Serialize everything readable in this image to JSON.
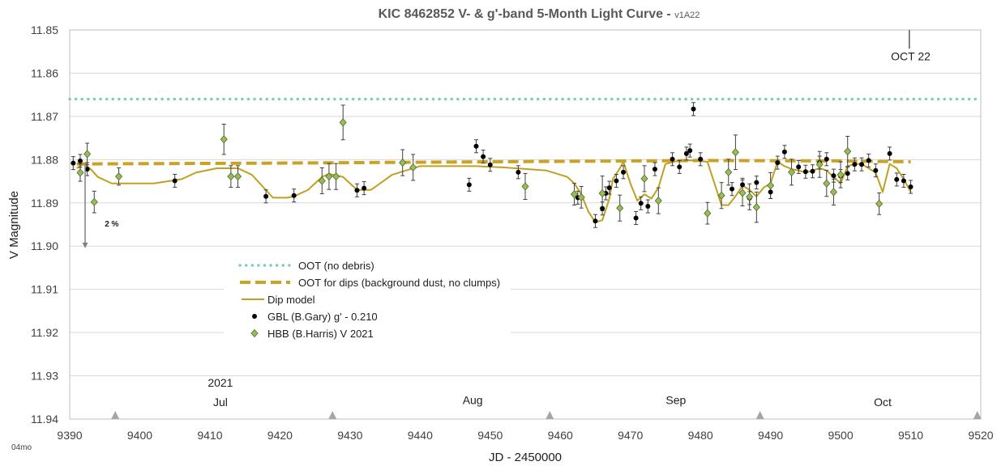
{
  "chart_data": {
    "type": "scatter",
    "title": "KIC 8462852 V- & g'-band 5-Month Light Curve - ",
    "title_version": "v1A22",
    "xlabel": "JD - 2450000",
    "ylabel": "V Magnitude",
    "xlim": [
      9390,
      9520
    ],
    "ylim": [
      11.85,
      11.94
    ],
    "y_inverted": true,
    "grid": "horizontal",
    "legend_position": "center-left",
    "xticks": [
      "9390",
      "9400",
      "9410",
      "9420",
      "9430",
      "9440",
      "9450",
      "9460",
      "9470",
      "9480",
      "9490",
      "9500",
      "9510",
      "9520"
    ],
    "yticks": [
      "11.85",
      "11.86",
      "11.87",
      "11.88",
      "11.89",
      "11.90",
      "11.91",
      "11.92",
      "11.93",
      "11.94"
    ],
    "month_labels": [
      {
        "text": "2021",
        "x": 9411.5,
        "y": 11.9325
      },
      {
        "text": "Jul",
        "x": 9411.5,
        "y": 11.937
      },
      {
        "text": "Aug",
        "x": 9447.5,
        "y": 11.9365
      },
      {
        "text": "Sep",
        "x": 9476.5,
        "y": 11.9365
      },
      {
        "text": "Oct",
        "x": 9506,
        "y": 11.937
      }
    ],
    "month_markers_x": [
      9396.5,
      9427.5,
      9458.5,
      9488.5,
      9519.5
    ],
    "annotations": [
      {
        "text": "OCT 22",
        "x": 9510,
        "y": 11.857
      },
      {
        "text": "2 %",
        "x": 9395,
        "y": 11.8955
      }
    ],
    "oct22_marker": {
      "x": 9509.8,
      "y_from": 11.85,
      "y_to": 11.8543
    },
    "two_percent_arrow": {
      "x": 9392.2,
      "y_from": 11.881,
      "y_to": 11.9005
    },
    "series": [
      {
        "name": "OOT (no debris)",
        "kind": "dotted-line",
        "color": "#7fcfaa",
        "x": [
          9390,
          9520
        ],
        "y": [
          11.866,
          11.866
        ]
      },
      {
        "name": "OOT for dips (background dust, no clumps)",
        "kind": "dashed-line",
        "color": "#c9a227",
        "x": [
          9391,
          9420,
          9450,
          9480,
          9500,
          9510
        ],
        "y": [
          11.881,
          11.8808,
          11.8805,
          11.8802,
          11.8803,
          11.8805
        ]
      },
      {
        "name": "Dip model",
        "kind": "line",
        "color": "#c0a020",
        "x": [
          9391,
          9392,
          9393,
          9394,
          9396,
          9399,
          9402,
          9406,
          9408,
          9411,
          9414,
          9416,
          9419,
          9421,
          9422,
          9424,
          9426,
          9427,
          9429,
          9431,
          9433,
          9436,
          9438,
          9440,
          9443,
          9448,
          9452,
          9458,
          9461,
          9462,
          9463,
          9464,
          9465,
          9466,
          9467,
          9467.5,
          9468.5,
          9469,
          9470,
          9471,
          9472,
          9473,
          9474,
          9475,
          9477,
          9479,
          9481,
          9482,
          9483,
          9484,
          9485,
          9486,
          9487,
          9488,
          9489,
          9490,
          9491,
          9492,
          9493,
          9494,
          9495,
          9496,
          9497,
          9498,
          9499,
          9500,
          9501,
          9502,
          9503,
          9504,
          9505,
          9506,
          9507,
          9508,
          9509,
          9510
        ],
        "y": [
          11.882,
          11.881,
          11.8822,
          11.884,
          11.8855,
          11.8855,
          11.8855,
          11.8845,
          11.883,
          11.882,
          11.882,
          11.8835,
          11.8888,
          11.8888,
          11.8885,
          11.887,
          11.884,
          11.8833,
          11.884,
          11.887,
          11.887,
          11.8835,
          11.8825,
          11.8815,
          11.8815,
          11.8815,
          11.8818,
          11.8825,
          11.884,
          11.8855,
          11.888,
          11.892,
          11.8945,
          11.894,
          11.889,
          11.8845,
          11.882,
          11.8805,
          11.8855,
          11.8895,
          11.888,
          11.889,
          11.8865,
          11.881,
          11.8802,
          11.8802,
          11.8805,
          11.8855,
          11.8905,
          11.8905,
          11.8885,
          11.886,
          11.887,
          11.8885,
          11.8865,
          11.8855,
          11.8805,
          11.8815,
          11.8822,
          11.8825,
          11.883,
          11.8825,
          11.882,
          11.8825,
          11.884,
          11.8855,
          11.8815,
          11.881,
          11.881,
          11.882,
          11.883,
          11.8875,
          11.881,
          11.882,
          11.8845,
          11.8875
        ]
      },
      {
        "name": "GBL (B.Gary) g' - 0.210",
        "kind": "circle",
        "color": "#000000",
        "points": [
          [
            9390.5,
            11.8808,
            0.0015
          ],
          [
            9391.5,
            11.8803,
            0.0015
          ],
          [
            9392.5,
            11.8822,
            0.0015
          ],
          [
            9405,
            11.8849,
            0.0015
          ],
          [
            9418,
            11.8885,
            0.0015
          ],
          [
            9422,
            11.8883,
            0.0015
          ],
          [
            9431,
            11.8871,
            0.0015
          ],
          [
            9432,
            11.8866,
            0.0015
          ],
          [
            9447,
            11.8858,
            0.0015
          ],
          [
            9448,
            11.8769,
            0.0015
          ],
          [
            9449,
            11.8793,
            0.0015
          ],
          [
            9450,
            11.8812,
            0.0015
          ],
          [
            9454,
            11.8829,
            0.0015
          ],
          [
            9462.5,
            11.8888,
            0.0015
          ],
          [
            9465,
            11.8942,
            0.0015
          ],
          [
            9466,
            11.8913,
            0.0015
          ],
          [
            9466.5,
            11.8878,
            0.0015
          ],
          [
            9467,
            11.8865,
            0.0015
          ],
          [
            9468,
            11.8849,
            0.0015
          ],
          [
            9469,
            11.8829,
            0.0015
          ],
          [
            9470.8,
            11.8935,
            0.0015
          ],
          [
            9471.5,
            11.8901,
            0.0015
          ],
          [
            9472.5,
            11.8908,
            0.0015
          ],
          [
            9473.5,
            11.8822,
            0.0015
          ],
          [
            9476,
            11.8799,
            0.0015
          ],
          [
            9477,
            11.8817,
            0.0015
          ],
          [
            9478,
            11.8786,
            0.0015
          ],
          [
            9478.5,
            11.8779,
            0.0015
          ],
          [
            9479,
            11.8683,
            0.0015
          ],
          [
            9480,
            11.8799,
            0.0015
          ],
          [
            9484.5,
            11.8868,
            0.0015
          ],
          [
            9486,
            11.8858,
            0.0015
          ],
          [
            9487,
            11.8889,
            0.0015
          ],
          [
            9488,
            11.8853,
            0.0015
          ],
          [
            9490,
            11.8875,
            0.0015
          ],
          [
            9491,
            11.8807,
            0.0015
          ],
          [
            9492,
            11.8782,
            0.0015
          ],
          [
            9494,
            11.8817,
            0.0015
          ],
          [
            9495,
            11.8828,
            0.0015
          ],
          [
            9496,
            11.8827,
            0.0015
          ],
          [
            9497,
            11.8807,
            0.0015
          ],
          [
            9498,
            11.8799,
            0.0015
          ],
          [
            9499,
            11.8837,
            0.0015
          ],
          [
            9500,
            11.8838,
            0.0015
          ],
          [
            9501,
            11.8832,
            0.0015
          ],
          [
            9502,
            11.8811,
            0.0015
          ],
          [
            9503,
            11.8811,
            0.0015
          ],
          [
            9504,
            11.8802,
            0.0015
          ],
          [
            9505,
            11.8825,
            0.0015
          ],
          [
            9507,
            11.8786,
            0.0015
          ],
          [
            9508,
            11.8846,
            0.0015
          ],
          [
            9509,
            11.8849,
            0.0015
          ],
          [
            9510,
            11.8863,
            0.0015
          ]
        ]
      },
      {
        "name": "HBB (B.Harris) V 2021",
        "kind": "diamond",
        "color": "#9bbb59",
        "points": [
          [
            9391.5,
            11.883,
            0.002
          ],
          [
            9392.5,
            11.8787,
            0.0025
          ],
          [
            9393.5,
            11.8898,
            0.0025
          ],
          [
            9397,
            11.8839,
            0.002
          ],
          [
            9412,
            11.8753,
            0.0035
          ],
          [
            9413,
            11.8839,
            0.0025
          ],
          [
            9414,
            11.8839,
            0.0025
          ],
          [
            9426,
            11.8849,
            0.003
          ],
          [
            9427,
            11.8839,
            0.003
          ],
          [
            9428,
            11.8839,
            0.003
          ],
          [
            9429,
            11.8714,
            0.004
          ],
          [
            9437.5,
            11.8807,
            0.003
          ],
          [
            9439,
            11.8818,
            0.003
          ],
          [
            9455,
            11.8862,
            0.003
          ],
          [
            9462,
            11.888,
            0.0025
          ],
          [
            9463,
            11.8887,
            0.0025
          ],
          [
            9466,
            11.8878,
            0.004
          ],
          [
            9468.5,
            11.8912,
            0.003
          ],
          [
            9472,
            11.8844,
            0.003
          ],
          [
            9474,
            11.8895,
            0.003
          ],
          [
            9481,
            11.8924,
            0.0025
          ],
          [
            9483,
            11.8883,
            0.003
          ],
          [
            9484,
            11.8829,
            0.003
          ],
          [
            9485,
            11.8783,
            0.004
          ],
          [
            9486,
            11.8877,
            0.003
          ],
          [
            9487,
            11.8886,
            0.003
          ],
          [
            9488,
            11.891,
            0.0035
          ],
          [
            9490,
            11.886,
            0.003
          ],
          [
            9493,
            11.8829,
            0.003
          ],
          [
            9497,
            11.8811,
            0.003
          ],
          [
            9498,
            11.8855,
            0.003
          ],
          [
            9499,
            11.8875,
            0.003
          ],
          [
            9500,
            11.8835,
            0.003
          ],
          [
            9501,
            11.8781,
            0.0035
          ],
          [
            9505.5,
            11.8902,
            0.0025
          ]
        ]
      }
    ]
  },
  "corner_label": "04mo"
}
